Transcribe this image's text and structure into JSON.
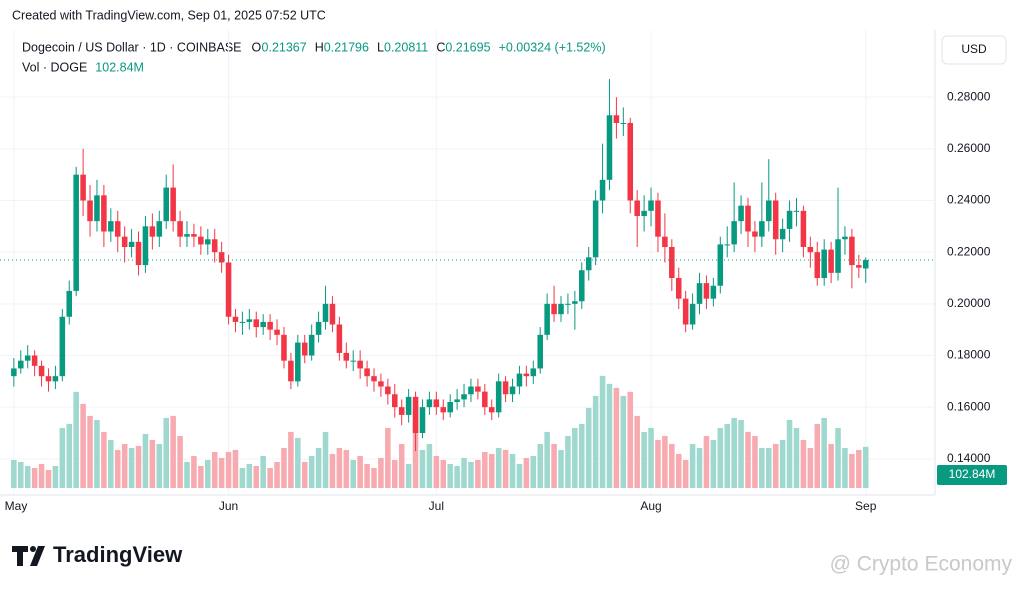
{
  "chart_data": {
    "type": "candlestick",
    "credit": "Created with TradingView.com, Sep 01, 2025 07:52 UTC",
    "title": "Dogecoin / US Dollar · 1D · COINBASE",
    "quote": {
      "o_label": "O",
      "o": "0.21367",
      "h_label": "H",
      "h": "0.21796",
      "l_label": "L",
      "l": "0.20811",
      "c_label": "C",
      "c": "0.21695",
      "change": "+0.00324 (+1.52%)"
    },
    "currency": "USD",
    "brand": "TradingView",
    "watermark": "@ Crypto Economy",
    "up_color": "#089981",
    "down_color": "#f23645",
    "open": [
      0.172,
      0.175,
      0.178,
      0.18,
      0.176,
      0.172,
      0.17,
      0.172,
      0.195,
      0.205,
      0.25,
      0.24,
      0.232,
      0.242,
      0.228,
      0.232,
      0.226,
      0.222,
      0.224,
      0.215,
      0.23,
      0.226,
      0.232,
      0.245,
      0.232,
      0.226,
      0.227,
      0.226,
      0.223,
      0.225,
      0.22,
      0.216,
      0.195,
      0.193,
      0.193,
      0.194,
      0.191,
      0.193,
      0.19,
      0.188,
      0.178,
      0.17,
      0.185,
      0.18,
      0.188,
      0.193,
      0.2,
      0.192,
      0.181,
      0.178,
      0.178,
      0.175,
      0.172,
      0.17,
      0.168,
      0.165,
      0.16,
      0.157,
      0.164,
      0.15,
      0.16,
      0.163,
      0.16,
      0.158,
      0.162,
      0.163,
      0.165,
      0.168,
      0.166,
      0.16,
      0.158,
      0.17,
      0.165,
      0.168,
      0.173,
      0.172,
      0.175,
      0.188,
      0.2,
      0.196,
      0.2,
      0.2,
      0.201,
      0.213,
      0.218,
      0.24,
      0.248,
      0.273,
      0.27,
      0.27,
      0.24,
      0.234,
      0.236,
      0.24,
      0.226,
      0.222,
      0.21,
      0.202,
      0.192,
      0.2,
      0.208,
      0.202,
      0.207,
      0.223,
      0.223,
      0.232,
      0.238,
      0.228,
      0.226,
      0.232,
      0.24,
      0.225,
      0.229,
      0.236,
      0.236,
      0.222,
      0.22,
      0.21,
      0.221,
      0.212,
      0.225,
      0.226,
      0.215,
      0.21367
    ],
    "high": [
      0.179,
      0.182,
      0.184,
      0.182,
      0.178,
      0.175,
      0.176,
      0.198,
      0.209,
      0.253,
      0.26,
      0.246,
      0.248,
      0.246,
      0.237,
      0.236,
      0.23,
      0.229,
      0.228,
      0.234,
      0.235,
      0.236,
      0.25,
      0.254,
      0.236,
      0.232,
      0.231,
      0.23,
      0.229,
      0.229,
      0.224,
      0.219,
      0.198,
      0.197,
      0.198,
      0.197,
      0.196,
      0.196,
      0.194,
      0.191,
      0.181,
      0.188,
      0.188,
      0.192,
      0.197,
      0.207,
      0.203,
      0.195,
      0.185,
      0.182,
      0.182,
      0.178,
      0.175,
      0.173,
      0.171,
      0.169,
      0.163,
      0.167,
      0.166,
      0.163,
      0.166,
      0.166,
      0.163,
      0.165,
      0.167,
      0.169,
      0.171,
      0.171,
      0.169,
      0.163,
      0.173,
      0.172,
      0.171,
      0.176,
      0.176,
      0.178,
      0.191,
      0.204,
      0.207,
      0.203,
      0.204,
      0.205,
      0.216,
      0.222,
      0.244,
      0.262,
      0.287,
      0.28,
      0.276,
      0.272,
      0.244,
      0.242,
      0.245,
      0.243,
      0.235,
      0.225,
      0.214,
      0.205,
      0.204,
      0.212,
      0.211,
      0.21,
      0.226,
      0.23,
      0.247,
      0.242,
      0.241,
      0.232,
      0.247,
      0.256,
      0.243,
      0.233,
      0.24,
      0.241,
      0.238,
      0.226,
      0.224,
      0.225,
      0.224,
      0.245,
      0.23,
      0.229,
      0.219,
      0.21796
    ],
    "low": [
      0.168,
      0.173,
      0.175,
      0.172,
      0.168,
      0.166,
      0.167,
      0.17,
      0.192,
      0.203,
      0.234,
      0.226,
      0.228,
      0.222,
      0.224,
      0.22,
      0.216,
      0.218,
      0.211,
      0.212,
      0.221,
      0.222,
      0.229,
      0.228,
      0.222,
      0.222,
      0.222,
      0.219,
      0.219,
      0.216,
      0.212,
      0.192,
      0.189,
      0.188,
      0.19,
      0.187,
      0.188,
      0.186,
      0.184,
      0.175,
      0.167,
      0.168,
      0.177,
      0.178,
      0.185,
      0.19,
      0.189,
      0.178,
      0.175,
      0.174,
      0.171,
      0.168,
      0.166,
      0.164,
      0.161,
      0.156,
      0.153,
      0.154,
      0.143,
      0.148,
      0.157,
      0.157,
      0.155,
      0.156,
      0.159,
      0.16,
      0.162,
      0.163,
      0.157,
      0.155,
      0.156,
      0.162,
      0.162,
      0.165,
      0.168,
      0.169,
      0.173,
      0.186,
      0.193,
      0.193,
      0.196,
      0.19,
      0.198,
      0.209,
      0.215,
      0.235,
      0.244,
      0.264,
      0.265,
      0.235,
      0.222,
      0.228,
      0.23,
      0.22,
      0.216,
      0.205,
      0.198,
      0.189,
      0.19,
      0.196,
      0.198,
      0.199,
      0.204,
      0.218,
      0.22,
      0.227,
      0.222,
      0.22,
      0.222,
      0.228,
      0.219,
      0.22,
      0.224,
      0.23,
      0.218,
      0.214,
      0.207,
      0.207,
      0.208,
      0.209,
      0.219,
      0.206,
      0.21,
      0.20811
    ],
    "close": [
      0.175,
      0.178,
      0.18,
      0.176,
      0.172,
      0.17,
      0.172,
      0.195,
      0.205,
      0.25,
      0.24,
      0.232,
      0.242,
      0.228,
      0.232,
      0.226,
      0.222,
      0.224,
      0.215,
      0.23,
      0.226,
      0.232,
      0.245,
      0.232,
      0.226,
      0.227,
      0.226,
      0.223,
      0.225,
      0.22,
      0.216,
      0.195,
      0.193,
      0.193,
      0.194,
      0.191,
      0.193,
      0.19,
      0.188,
      0.178,
      0.17,
      0.185,
      0.18,
      0.188,
      0.193,
      0.2,
      0.192,
      0.181,
      0.178,
      0.178,
      0.175,
      0.172,
      0.17,
      0.168,
      0.165,
      0.16,
      0.157,
      0.164,
      0.15,
      0.16,
      0.163,
      0.16,
      0.158,
      0.162,
      0.163,
      0.165,
      0.168,
      0.166,
      0.16,
      0.158,
      0.17,
      0.165,
      0.168,
      0.173,
      0.172,
      0.175,
      0.188,
      0.2,
      0.196,
      0.2,
      0.2,
      0.201,
      0.213,
      0.218,
      0.24,
      0.248,
      0.273,
      0.27,
      0.27,
      0.24,
      0.234,
      0.236,
      0.24,
      0.226,
      0.222,
      0.21,
      0.202,
      0.192,
      0.2,
      0.208,
      0.202,
      0.207,
      0.223,
      0.223,
      0.232,
      0.238,
      0.228,
      0.226,
      0.232,
      0.24,
      0.225,
      0.229,
      0.236,
      0.236,
      0.222,
      0.22,
      0.21,
      0.221,
      0.212,
      0.225,
      0.226,
      0.215,
      0.214,
      0.21695
    ],
    "volume": {
      "name": "Vol · DOGE",
      "value_text": "102.84M",
      "up_color": "#9fd8cf",
      "down_color": "#f7abb1",
      "values": [
        70,
        65,
        55,
        50,
        60,
        45,
        55,
        150,
        160,
        240,
        210,
        180,
        170,
        140,
        120,
        95,
        110,
        100,
        105,
        135,
        120,
        110,
        175,
        180,
        130,
        65,
        80,
        55,
        70,
        90,
        75,
        90,
        95,
        50,
        60,
        55,
        80,
        50,
        65,
        100,
        140,
        125,
        65,
        80,
        100,
        140,
        85,
        100,
        95,
        70,
        80,
        60,
        50,
        75,
        150,
        70,
        110,
        60,
        200,
        95,
        110,
        80,
        70,
        60,
        55,
        75,
        65,
        70,
        90,
        85,
        100,
        95,
        85,
        60,
        75,
        80,
        110,
        140,
        110,
        95,
        130,
        150,
        160,
        200,
        230,
        280,
        260,
        250,
        230,
        240,
        180,
        140,
        150,
        120,
        130,
        110,
        85,
        70,
        110,
        100,
        130,
        120,
        150,
        160,
        175,
        170,
        140,
        130,
        100,
        100,
        110,
        120,
        170,
        150,
        120,
        100,
        160,
        175,
        110,
        150,
        100,
        85,
        95,
        102.84
      ]
    },
    "xlim": [
      -2,
      133
    ],
    "xticks": [
      {
        "value": 0,
        "label": "May"
      },
      {
        "value": 31,
        "label": "Jun"
      },
      {
        "value": 61,
        "label": "Jul"
      },
      {
        "value": 92,
        "label": "Aug"
      },
      {
        "value": 123,
        "label": "Sep"
      }
    ],
    "ylim": [
      0.126,
      0.306
    ],
    "yticks": [
      {
        "value": 0.14,
        "label": "0.14000"
      },
      {
        "value": 0.16,
        "label": "0.16000"
      },
      {
        "value": 0.18,
        "label": "0.18000"
      },
      {
        "value": 0.2,
        "label": "0.20000"
      },
      {
        "value": 0.22,
        "label": "0.22000"
      },
      {
        "value": 0.24,
        "label": "0.24000"
      },
      {
        "value": 0.26,
        "label": "0.26000"
      },
      {
        "value": 0.28,
        "label": "0.28000"
      }
    ],
    "grid": true,
    "last_price_line": true
  }
}
